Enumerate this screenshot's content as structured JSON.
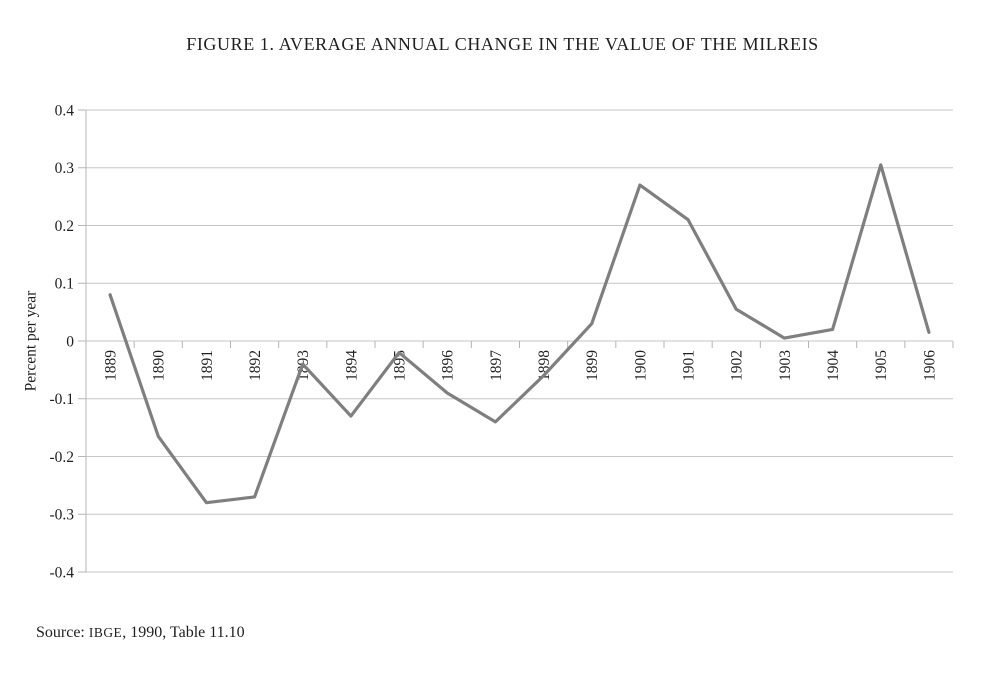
{
  "figure": {
    "source": {
      "label": "Source: ",
      "org": "IBGE",
      "citation": ", 1990, Table 11.10"
    }
  },
  "chart_data": {
    "type": "line",
    "title": "FIGURE 1. AVERAGE ANNUAL CHANGE IN THE VALUE OF THE MILREIS",
    "xlabel": "",
    "ylabel": "Percent per year",
    "categories": [
      "1889",
      "1890",
      "1891",
      "1892",
      "1893",
      "1894",
      "1895",
      "1896",
      "1897",
      "1898",
      "1899",
      "1900",
      "1901",
      "1902",
      "1903",
      "1904",
      "1905",
      "1906"
    ],
    "values": [
      0.08,
      -0.165,
      -0.28,
      -0.27,
      -0.04,
      -0.13,
      -0.02,
      -0.09,
      -0.14,
      -0.06,
      0.03,
      0.27,
      0.21,
      0.055,
      0.005,
      0.02,
      0.305,
      0.015
    ],
    "ylim": [
      -0.4,
      0.4
    ],
    "ytick_step": 0.1,
    "ytick_labels": [
      "0.4",
      "0.3",
      "0.2",
      "0.1",
      "0",
      "-0.1",
      "-0.2",
      "-0.3",
      "-0.4"
    ],
    "grid": "horizontal",
    "legend": "none",
    "colors": {
      "line": "#7f7f7f",
      "grid": "#c6c6c6",
      "axis": "#b5b5b5",
      "text": "#1f1f1f",
      "background": "#ffffff"
    }
  }
}
